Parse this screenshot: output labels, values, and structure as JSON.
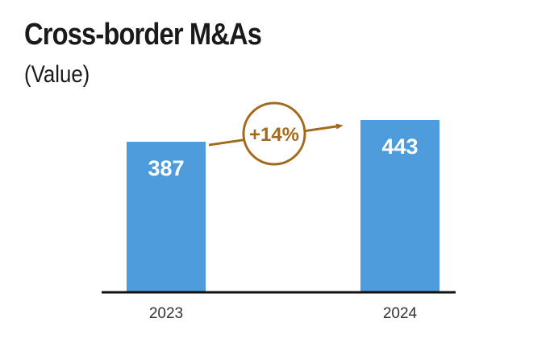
{
  "chart_data": {
    "type": "bar",
    "title": "Cross-border M&As",
    "subtitle": "(Value)",
    "categories": [
      "2023",
      "2024"
    ],
    "values": [
      387,
      443
    ],
    "value_labels": [
      "387",
      "443"
    ],
    "ylim": [
      0,
      443
    ],
    "grid": false,
    "legend": "none",
    "annotation": {
      "text": "+14%",
      "from": "2023",
      "to": "2024"
    },
    "colors": {
      "bar": "#4e9cdb",
      "annotation": "#a36a1e",
      "axis": "#111111"
    }
  }
}
